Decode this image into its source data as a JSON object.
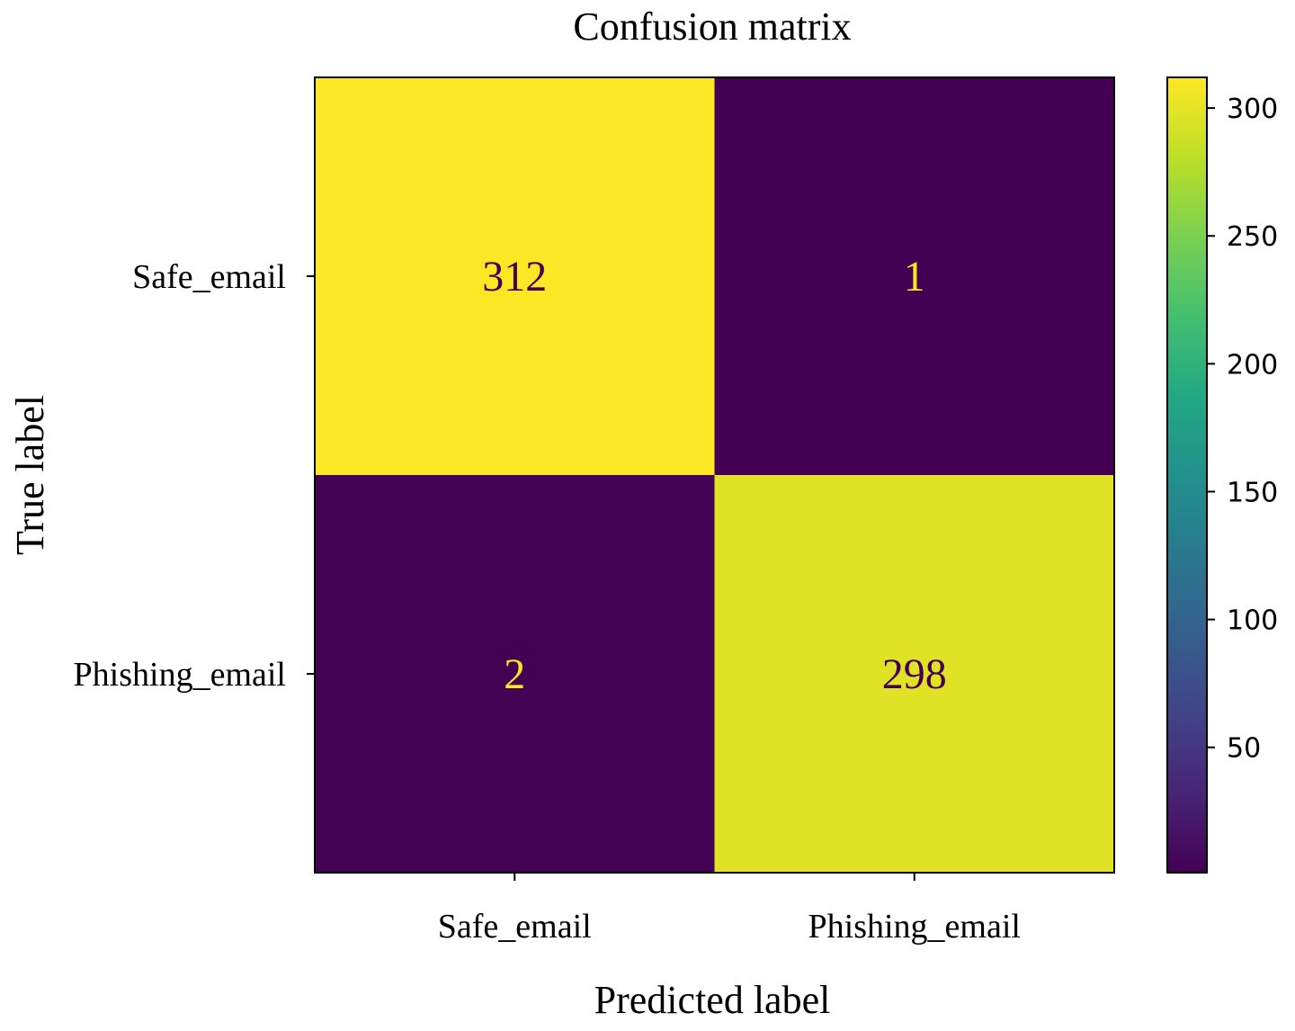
{
  "chart_data": {
    "type": "heatmap",
    "title": "Confusion matrix",
    "xlabel": "Predicted label",
    "ylabel": "True label",
    "x_categories": [
      "Safe_email",
      "Phishing_email"
    ],
    "y_categories": [
      "Safe_email",
      "Phishing_email"
    ],
    "values": [
      [
        312,
        1
      ],
      [
        2,
        298
      ]
    ],
    "colormap": "viridis",
    "colorbar": {
      "min": 1,
      "max": 312,
      "ticks": [
        50,
        100,
        150,
        200,
        250,
        300
      ]
    },
    "colors": {
      "text_on_dark": "#fde725",
      "text_on_light": "#440154"
    }
  }
}
